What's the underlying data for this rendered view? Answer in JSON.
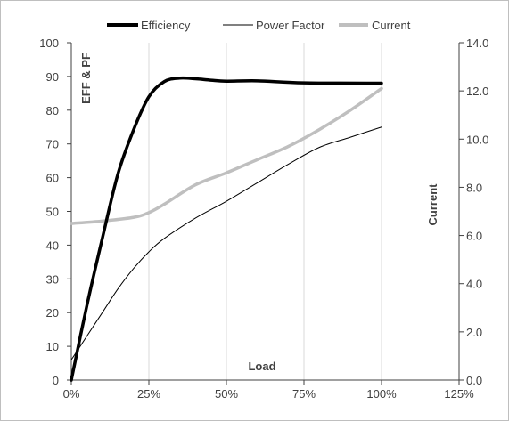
{
  "chart_data": {
    "type": "line",
    "title": "",
    "xlabel": "Load",
    "ylabel_left": "EFF & PF",
    "ylabel_right": "Current",
    "xlim": [
      0,
      125
    ],
    "ylim_left": [
      0,
      100
    ],
    "ylim_right": [
      0,
      14
    ],
    "x_ticks": [
      0,
      25,
      50,
      75,
      100,
      125
    ],
    "x_tick_labels": [
      "0%",
      "25%",
      "50%",
      "75%",
      "100%",
      "125%"
    ],
    "y_left_ticks": [
      0,
      10,
      20,
      30,
      40,
      50,
      60,
      70,
      80,
      90,
      100
    ],
    "y_left_tick_labels": [
      "0",
      "10",
      "20",
      "30",
      "40",
      "50",
      "60",
      "70",
      "80",
      "90",
      "100"
    ],
    "y_right_ticks": [
      0,
      2,
      4,
      6,
      8,
      10,
      12,
      14
    ],
    "y_right_tick_labels": [
      "0.0",
      "2.0",
      "4.0",
      "6.0",
      "8.0",
      "10.0",
      "12.0",
      "14.0"
    ],
    "vertical_grid": true,
    "legend_position": "top",
    "series": [
      {
        "name": "Efficiency",
        "axis": "left",
        "color": "#000000",
        "x": [
          0,
          5,
          10,
          15,
          20,
          25,
          30,
          35,
          40,
          45,
          50,
          60,
          75,
          100
        ],
        "y": [
          0,
          22,
          42,
          61,
          74,
          84,
          88.5,
          89.5,
          89.3,
          88.9,
          88.6,
          88.7,
          88.1,
          88.0
        ]
      },
      {
        "name": "Power Factor",
        "axis": "left",
        "color": "#000000",
        "x": [
          0,
          5,
          10,
          15,
          20,
          25,
          30,
          40,
          50,
          60,
          70,
          80,
          90,
          100
        ],
        "y": [
          6,
          13,
          20,
          27,
          33,
          38,
          42,
          48,
          53,
          58.5,
          64,
          69,
          72,
          75
        ]
      },
      {
        "name": "Current",
        "axis": "right",
        "color": "#bfbfbf",
        "x": [
          0,
          10,
          20,
          25,
          30,
          40,
          50,
          60,
          70,
          80,
          90,
          100
        ],
        "y": [
          6.5,
          6.6,
          6.75,
          6.95,
          7.3,
          8.1,
          8.6,
          9.15,
          9.7,
          10.4,
          11.2,
          12.1
        ]
      }
    ]
  },
  "colors": {
    "axis": "#404040",
    "grid": "#d9d9d9",
    "frame": "#bfbfbf"
  }
}
